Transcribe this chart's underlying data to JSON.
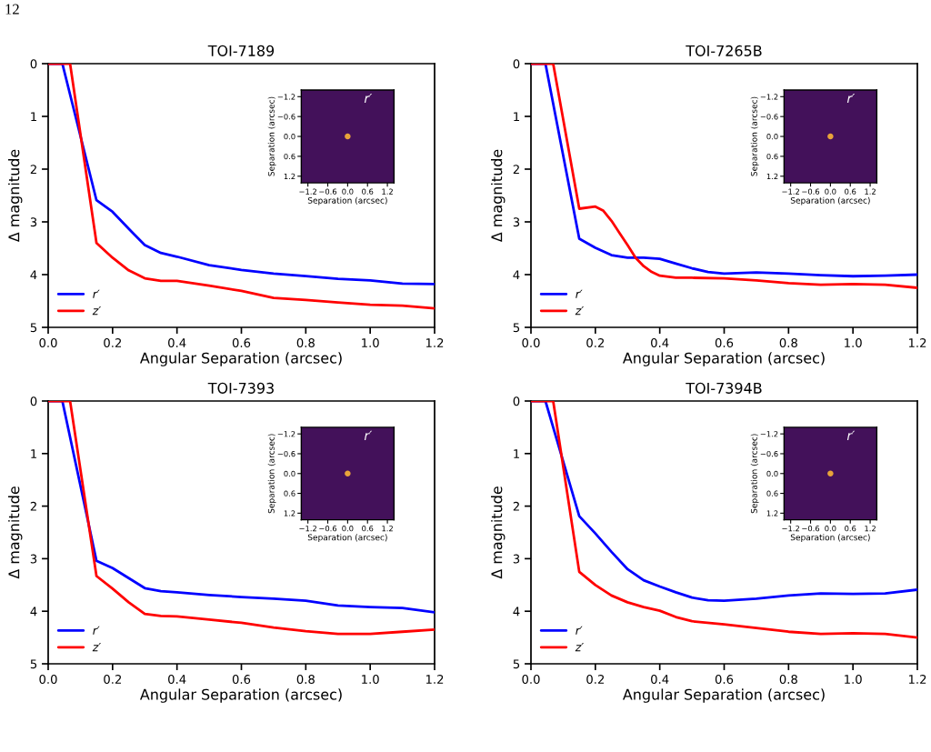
{
  "chart_data": [
    {
      "type": "other",
      "annotations": [
        "12"
      ]
    },
    {
      "type": "line",
      "title": "TOI-7189",
      "xlabel": "Angular Separation (arcsec)",
      "ylabel": "Δ magnitude",
      "xlim": [
        0,
        1.2
      ],
      "xticks": [
        {
          "value": 0,
          "label": "0.0"
        },
        0.2,
        0.4,
        0.6,
        0.8,
        {
          "value": 1,
          "label": "1.0"
        },
        1.2
      ],
      "ylim": [
        5,
        0
      ],
      "yticks": [
        0,
        1,
        2,
        3,
        4,
        5
      ],
      "legend": "bottom left",
      "series": [
        {
          "name": "r′",
          "color": "#0000ff",
          "x": [
            0.0,
            0.044,
            0.15,
            0.2,
            0.25,
            0.3,
            0.35,
            0.4,
            0.5,
            0.6,
            0.7,
            0.8,
            0.9,
            1.0,
            1.1,
            1.2
          ],
          "values": [
            0,
            0,
            2.59,
            2.81,
            3.13,
            3.44,
            3.59,
            3.66,
            3.82,
            3.91,
            3.98,
            4.03,
            4.08,
            4.11,
            4.17,
            4.18
          ]
        },
        {
          "name": "z′",
          "color": "#ff0000",
          "x": [
            0.0,
            0.068,
            0.15,
            0.2,
            0.25,
            0.3,
            0.35,
            0.4,
            0.5,
            0.6,
            0.7,
            0.8,
            0.9,
            1.0,
            1.1,
            1.2
          ],
          "values": [
            0,
            0,
            3.4,
            3.68,
            3.92,
            4.07,
            4.12,
            4.12,
            4.21,
            4.31,
            4.44,
            4.48,
            4.53,
            4.57,
            4.59,
            4.64
          ]
        }
      ]
    },
    {
      "type": "scatter",
      "xlabel": "Separation (arcsec)",
      "ylabel": "Separation (arcsec)",
      "xlim": [
        -1.4,
        1.4
      ],
      "ylim": [
        1.4,
        -1.4
      ],
      "xticks": [
        {
          "value": -1.2,
          "label": "−1.2"
        },
        {
          "value": -0.6,
          "label": "−0.6"
        },
        {
          "value": 0,
          "label": "0.0"
        },
        0.6,
        1.2
      ],
      "yticks": [
        {
          "value": -1.2,
          "label": "−1.2"
        },
        {
          "value": -0.6,
          "label": "−0.6"
        },
        {
          "value": 0,
          "label": "0.0"
        },
        0.6,
        1.2
      ],
      "marker": "circle",
      "annotations": [
        "r′"
      ],
      "series": [
        {
          "color": "#e8a33a",
          "x": [
            0
          ],
          "values": [
            0
          ]
        }
      ]
    },
    {
      "type": "line",
      "title": "TOI-7265B",
      "xlabel": "Angular Separation (arcsec)",
      "ylabel": "Δ magnitude",
      "xlim": [
        0,
        1.2
      ],
      "xticks": [
        {
          "value": 0,
          "label": "0.0"
        },
        0.2,
        0.4,
        0.6,
        0.8,
        {
          "value": 1,
          "label": "1.0"
        },
        1.2
      ],
      "ylim": [
        5,
        0
      ],
      "yticks": [
        0,
        1,
        2,
        3,
        4,
        5
      ],
      "legend": "bottom left",
      "series": [
        {
          "name": "r′",
          "color": "#0000ff",
          "x": [
            0.0,
            0.045,
            0.15,
            0.2,
            0.25,
            0.3,
            0.35,
            0.4,
            0.45,
            0.5,
            0.55,
            0.6,
            0.7,
            0.8,
            0.9,
            1.0,
            1.1,
            1.2
          ],
          "values": [
            0,
            0,
            3.32,
            3.49,
            3.63,
            3.68,
            3.68,
            3.7,
            3.79,
            3.88,
            3.95,
            3.98,
            3.96,
            3.98,
            4.01,
            4.03,
            4.02,
            4.0
          ]
        },
        {
          "name": "z′",
          "color": "#ff0000",
          "x": [
            0.0,
            0.069,
            0.15,
            0.2,
            0.225,
            0.25,
            0.275,
            0.3,
            0.325,
            0.35,
            0.375,
            0.4,
            0.45,
            0.5,
            0.6,
            0.7,
            0.8,
            0.9,
            1.0,
            1.1,
            1.2
          ],
          "values": [
            0,
            0,
            2.75,
            2.71,
            2.79,
            2.98,
            3.21,
            3.44,
            3.68,
            3.84,
            3.95,
            4.02,
            4.06,
            4.06,
            4.07,
            4.11,
            4.16,
            4.19,
            4.18,
            4.19,
            4.25
          ]
        }
      ]
    },
    {
      "type": "scatter",
      "xlabel": "Separation (arcsec)",
      "ylabel": "Separation (arcsec)",
      "xlim": [
        -1.4,
        1.4
      ],
      "ylim": [
        1.4,
        -1.4
      ],
      "xticks": [
        {
          "value": -1.2,
          "label": "−1.2"
        },
        {
          "value": -0.6,
          "label": "−0.6"
        },
        {
          "value": 0,
          "label": "0.0"
        },
        0.6,
        1.2
      ],
      "yticks": [
        {
          "value": -1.2,
          "label": "−1.2"
        },
        {
          "value": -0.6,
          "label": "−0.6"
        },
        {
          "value": 0,
          "label": "0.0"
        },
        0.6,
        1.2
      ],
      "marker": "circle",
      "annotations": [
        "r′"
      ],
      "series": [
        {
          "color": "#e8a33a",
          "x": [
            0
          ],
          "values": [
            0
          ]
        }
      ]
    },
    {
      "type": "line",
      "title": "TOI-7393",
      "xlabel": "Angular Separation (arcsec)",
      "ylabel": "Δ magnitude",
      "xlim": [
        0,
        1.2
      ],
      "xticks": [
        {
          "value": 0,
          "label": "0.0"
        },
        0.2,
        0.4,
        0.6,
        0.8,
        {
          "value": 1,
          "label": "1.0"
        },
        1.2
      ],
      "ylim": [
        5,
        0
      ],
      "yticks": [
        0,
        1,
        2,
        3,
        4,
        5
      ],
      "legend": "bottom left",
      "series": [
        {
          "name": "r′",
          "color": "#0000ff",
          "x": [
            0.0,
            0.044,
            0.15,
            0.2,
            0.25,
            0.3,
            0.35,
            0.4,
            0.5,
            0.6,
            0.7,
            0.8,
            0.9,
            1.0,
            1.1,
            1.2
          ],
          "values": [
            0,
            0,
            3.04,
            3.18,
            3.37,
            3.56,
            3.62,
            3.64,
            3.69,
            3.73,
            3.76,
            3.8,
            3.89,
            3.92,
            3.94,
            4.02
          ]
        },
        {
          "name": "z′",
          "color": "#ff0000",
          "x": [
            0.0,
            0.068,
            0.15,
            0.2,
            0.25,
            0.3,
            0.35,
            0.4,
            0.5,
            0.6,
            0.7,
            0.8,
            0.9,
            1.0,
            1.1,
            1.2
          ],
          "values": [
            0,
            0,
            3.33,
            3.57,
            3.83,
            4.05,
            4.09,
            4.1,
            4.16,
            4.22,
            4.31,
            4.38,
            4.43,
            4.43,
            4.39,
            4.35
          ]
        }
      ]
    },
    {
      "type": "scatter",
      "xlabel": "Separation (arcsec)",
      "ylabel": "Separation (arcsec)",
      "xlim": [
        -1.4,
        1.4
      ],
      "ylim": [
        1.4,
        -1.4
      ],
      "xticks": [
        {
          "value": -1.2,
          "label": "−1.2"
        },
        {
          "value": -0.6,
          "label": "−0.6"
        },
        {
          "value": 0,
          "label": "0.0"
        },
        0.6,
        1.2
      ],
      "yticks": [
        {
          "value": -1.2,
          "label": "−1.2"
        },
        {
          "value": -0.6,
          "label": "−0.6"
        },
        {
          "value": 0,
          "label": "0.0"
        },
        0.6,
        1.2
      ],
      "marker": "circle",
      "annotations": [
        "r′"
      ],
      "series": [
        {
          "color": "#e8a33a",
          "x": [
            0
          ],
          "values": [
            0
          ]
        }
      ]
    },
    {
      "type": "line",
      "title": "TOI-7394B",
      "xlabel": "Angular Separation (arcsec)",
      "ylabel": "Δ magnitude",
      "xlim": [
        0,
        1.2
      ],
      "xticks": [
        {
          "value": 0,
          "label": "0.0"
        },
        0.2,
        0.4,
        0.6,
        0.8,
        {
          "value": 1,
          "label": "1.0"
        },
        1.2
      ],
      "ylim": [
        5,
        0
      ],
      "yticks": [
        0,
        1,
        2,
        3,
        4,
        5
      ],
      "legend": "bottom left",
      "series": [
        {
          "name": "r′",
          "color": "#0000ff",
          "x": [
            0.0,
            0.045,
            0.15,
            0.2,
            0.25,
            0.3,
            0.35,
            0.4,
            0.45,
            0.5,
            0.55,
            0.6,
            0.7,
            0.8,
            0.9,
            1.0,
            1.1,
            1.2
          ],
          "values": [
            0,
            0,
            2.19,
            2.52,
            2.87,
            3.2,
            3.41,
            3.53,
            3.64,
            3.74,
            3.79,
            3.8,
            3.76,
            3.7,
            3.66,
            3.67,
            3.66,
            3.59
          ]
        },
        {
          "name": "z′",
          "color": "#ff0000",
          "x": [
            0.0,
            0.069,
            0.15,
            0.2,
            0.25,
            0.3,
            0.35,
            0.4,
            0.45,
            0.5,
            0.6,
            0.7,
            0.8,
            0.9,
            1.0,
            1.1,
            1.2
          ],
          "values": [
            0,
            0,
            3.25,
            3.5,
            3.7,
            3.83,
            3.92,
            3.99,
            4.11,
            4.19,
            4.25,
            4.32,
            4.39,
            4.43,
            4.42,
            4.43,
            4.5
          ]
        }
      ]
    },
    {
      "type": "scatter",
      "xlabel": "Separation (arcsec)",
      "ylabel": "Separation (arcsec)",
      "xlim": [
        -1.4,
        1.4
      ],
      "ylim": [
        1.4,
        -1.4
      ],
      "xticks": [
        {
          "value": -1.2,
          "label": "−1.2"
        },
        {
          "value": -0.6,
          "label": "−0.6"
        },
        {
          "value": 0,
          "label": "0.0"
        },
        0.6,
        1.2
      ],
      "yticks": [
        {
          "value": -1.2,
          "label": "−1.2"
        },
        {
          "value": -0.6,
          "label": "−0.6"
        },
        {
          "value": 0,
          "label": "0.0"
        },
        0.6,
        1.2
      ],
      "marker": "circle",
      "annotations": [
        "r′"
      ],
      "series": [
        {
          "color": "#e8a33a",
          "x": [
            0
          ],
          "values": [
            0
          ]
        }
      ]
    }
  ]
}
